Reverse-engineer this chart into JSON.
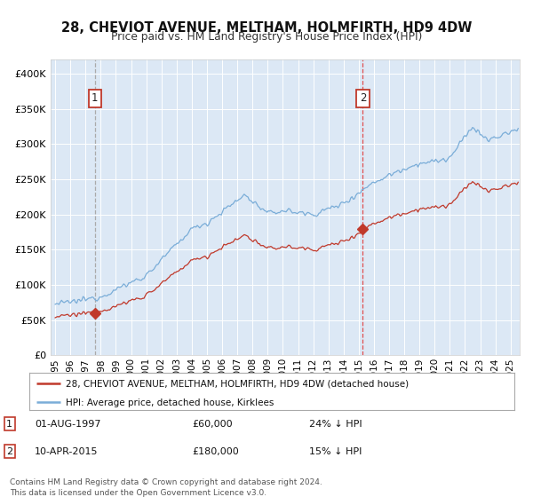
{
  "title": "28, CHEVIOT AVENUE, MELTHAM, HOLMFIRTH, HD9 4DW",
  "subtitle": "Price paid vs. HM Land Registry's House Price Index (HPI)",
  "ylim": [
    0,
    420000
  ],
  "yticks": [
    0,
    50000,
    100000,
    150000,
    200000,
    250000,
    300000,
    350000,
    400000
  ],
  "plot_bg_color": "#dce8f5",
  "grid_color": "#ffffff",
  "sale1_date": 1997.62,
  "sale1_price": 60000,
  "sale2_date": 2015.27,
  "sale2_price": 180000,
  "legend_line1": "28, CHEVIOT AVENUE, MELTHAM, HOLMFIRTH, HD9 4DW (detached house)",
  "legend_line2": "HPI: Average price, detached house, Kirklees",
  "footnote": "Contains HM Land Registry data © Crown copyright and database right 2024.\nThis data is licensed under the Open Government Licence v3.0.",
  "hpi_color": "#7aadd8",
  "sold_color": "#c0392b",
  "marker_color": "#c0392b",
  "vline1_color": "#b0b0b0",
  "vline2_color": "#e05050"
}
